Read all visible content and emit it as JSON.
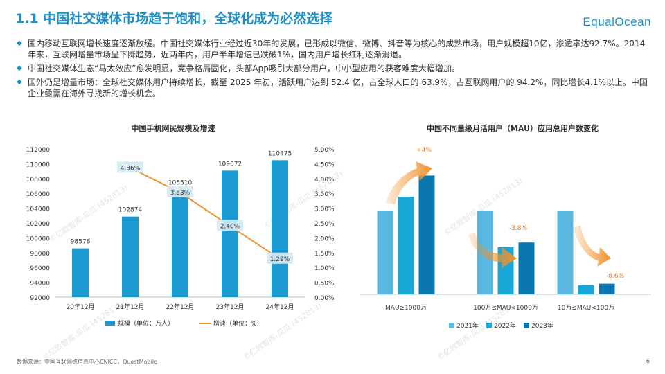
{
  "header": {
    "title": "1.1 中国社交媒体市场趋于饱和，全球化成为必然选择",
    "logo": "EqualOcean"
  },
  "bullets": [
    "国内移动互联网增长速度逐渐放缓。中国社交媒体行业经过近30年的发展，已形成以微信、微博、抖音等为核心的成熟市场，用户规模超10亿，渗透率达92.7%。2014年来，互联网增量市场呈下降趋势，近两年内，用户半年增速已跌破1%，国内用户增长红利逐渐消退。",
    "中国社交媒体生态“马太效应”愈发明显，竞争格局固化，头部App吸引大部分用户，中小型应用的获客难度大幅增加。",
    "国外仍是增量市场：全球社交媒体用户持续增长，截至 2025 年初，活跃用户达到 52.4 亿，占全球人口的 63.9%，占互联网用户的 94.2%，同比增长4.1%以上。中国企业亟需在海外寻找新的增长机会。"
  ],
  "watermark": "©亿欧智库-瓜瓜 (452813)",
  "chart_data": [
    {
      "type": "bar",
      "title": "中国手机网民规模及增速",
      "categories": [
        "20年12月",
        "21年12月",
        "22年12月",
        "23年12月",
        "24年12月"
      ],
      "series": [
        {
          "name": "规模（单位：万人）",
          "type": "bar",
          "values": [
            98576,
            102874,
            106510,
            109072,
            110475
          ],
          "labels": [
            "98576",
            "102874",
            "106510",
            "109072",
            "110475"
          ]
        },
        {
          "name": "增速（单位：%）",
          "type": "line",
          "axis": "right",
          "values": [
            null,
            4.36,
            3.53,
            2.4,
            1.29
          ],
          "labels": [
            "",
            "4.36%",
            "3.53%",
            "2.40%",
            "1.29%"
          ]
        }
      ],
      "yticks_left": [
        "112000",
        "110000",
        "108000",
        "106000",
        "104000",
        "102000",
        "100000",
        "98000",
        "96000",
        "94000",
        "92000"
      ],
      "yticks_right": [
        "5.00%",
        "4.50%",
        "4.00%",
        "3.50%",
        "3.00%",
        "2.50%",
        "2.00%",
        "1.50%",
        "1.00%",
        "0.50%",
        "0.00%"
      ],
      "ylim_left": [
        92000,
        112000
      ],
      "ylim_right": [
        0,
        5
      ],
      "legend_position": "bottom",
      "colors": {
        "bar": "#1a9bd1",
        "line": "#f0922b",
        "label_box": "#d5eaf5"
      }
    },
    {
      "type": "bar",
      "title": "中国不同量级月活用户（MAU）应用总用户数变化",
      "categories": [
        "MAU≥1000万",
        "100万≤MAU<1000万",
        "10万≤MAU<100万"
      ],
      "series": [
        {
          "name": "2021年",
          "color": "#5ab8e0",
          "values": [
            0.55,
            0.55,
            0.55
          ]
        },
        {
          "name": "2022年",
          "color": "#19a7d8",
          "values": [
            0.64,
            0.31,
            0.06
          ]
        },
        {
          "name": "2023年",
          "color": "#0a77ae",
          "values": [
            0.78,
            0.34,
            0.07
          ]
        }
      ],
      "annotations": [
        "+4%",
        "-3.8%",
        "-8.6%"
      ],
      "legend_position": "bottom",
      "colors": {
        "arrow": "#f0922b",
        "annotation": "#e8782a"
      }
    }
  ],
  "footer": {
    "source": "数据来源：中国互联网络信息中心CNICC，QuestMobile",
    "page": "6"
  }
}
